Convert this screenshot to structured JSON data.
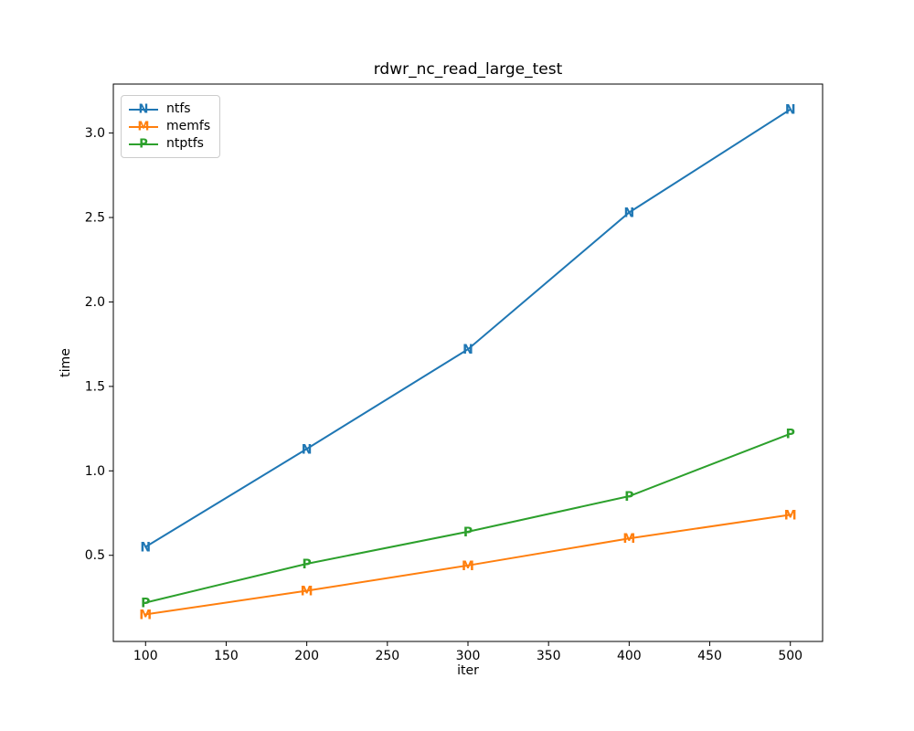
{
  "figure": {
    "background": "#ffffff",
    "axis_color": "#000000",
    "text_color": "#000000",
    "legend_border_color": "#cccccc"
  },
  "chart_data": {
    "type": "line",
    "title": "rdwr_nc_read_large_test",
    "xlabel": "iter",
    "ylabel": "time",
    "x": [
      100,
      200,
      300,
      400,
      500
    ],
    "series": [
      {
        "name": "ntfs",
        "marker": "N",
        "color": "#1f77b4",
        "values": [
          0.55,
          1.13,
          1.72,
          2.53,
          3.14
        ]
      },
      {
        "name": "memfs",
        "marker": "M",
        "color": "#ff7f0e",
        "values": [
          0.15,
          0.29,
          0.44,
          0.6,
          0.74
        ]
      },
      {
        "name": "ntptfs",
        "marker": "P",
        "color": "#2ca02c",
        "values": [
          0.22,
          0.45,
          0.64,
          0.85,
          1.22
        ]
      }
    ],
    "x_ticks": [
      100,
      150,
      200,
      250,
      300,
      350,
      400,
      450,
      500
    ],
    "y_ticks": [
      0.5,
      1.0,
      1.5,
      2.0,
      2.5,
      3.0
    ],
    "xlim": [
      80,
      520
    ],
    "ylim": [
      -0.01,
      3.29
    ],
    "grid": false,
    "legend_position": "upper left"
  }
}
